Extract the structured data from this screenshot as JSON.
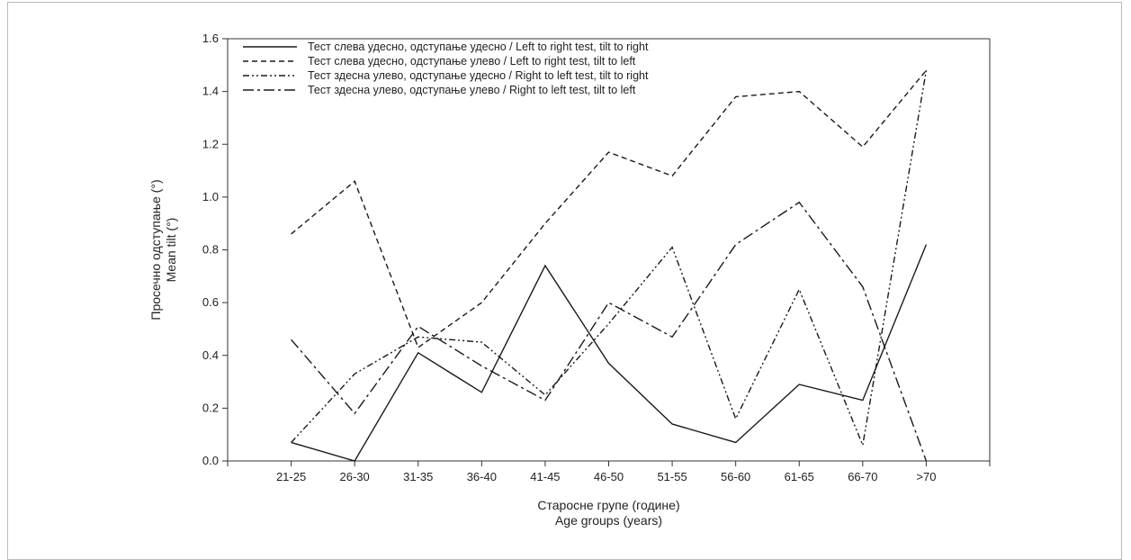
{
  "chart_data": {
    "type": "line",
    "title": "",
    "xlabel": [
      "Старосне групе (године)",
      "Age groups (years)"
    ],
    "ylabel": [
      "Просечно одступање (°)",
      "Mean tilt (°)"
    ],
    "categories": [
      "21-25",
      "26-30",
      "31-35",
      "36-40",
      "41-45",
      "46-50",
      "51-55",
      "56-60",
      "61-65",
      "66-70",
      ">70"
    ],
    "ylim": [
      0.0,
      1.6
    ],
    "yticks": [
      "0.0",
      "0.2",
      "0.4",
      "0.6",
      "0.8",
      "1.0",
      "1.2",
      "1.4",
      "1.6"
    ],
    "grid": false,
    "legend_position": "top-left",
    "series": [
      {
        "name": "Тест слева удесно, одступање удесно / Left to right test, tilt to right",
        "dash": "solid",
        "values": [
          0.07,
          0.0,
          0.41,
          0.26,
          0.74,
          0.37,
          0.14,
          0.07,
          0.29,
          0.23,
          0.82
        ]
      },
      {
        "name": "Тест слева удесно, одступање улево / Left to right test, tilt to left",
        "dash": "dash",
        "values": [
          0.86,
          1.06,
          0.43,
          0.6,
          0.9,
          1.17,
          1.08,
          1.38,
          1.4,
          1.19,
          1.48
        ]
      },
      {
        "name": "Тест здесна улево, одступање удесно / Right to left test, tilt to right",
        "dash": "dashdotdot",
        "values": [
          0.07,
          0.33,
          0.47,
          0.45,
          0.25,
          0.52,
          0.81,
          0.16,
          0.65,
          0.06,
          1.48
        ]
      },
      {
        "name": "Тест здесна улево, одступање улево / Right to left test, tilt to left",
        "dash": "dashdot",
        "values": [
          0.46,
          0.18,
          0.51,
          0.36,
          0.23,
          0.6,
          0.47,
          0.82,
          0.98,
          0.66,
          0.0
        ]
      }
    ],
    "colors": {
      "line": "#1a1a1a",
      "axis": "#333333"
    }
  }
}
